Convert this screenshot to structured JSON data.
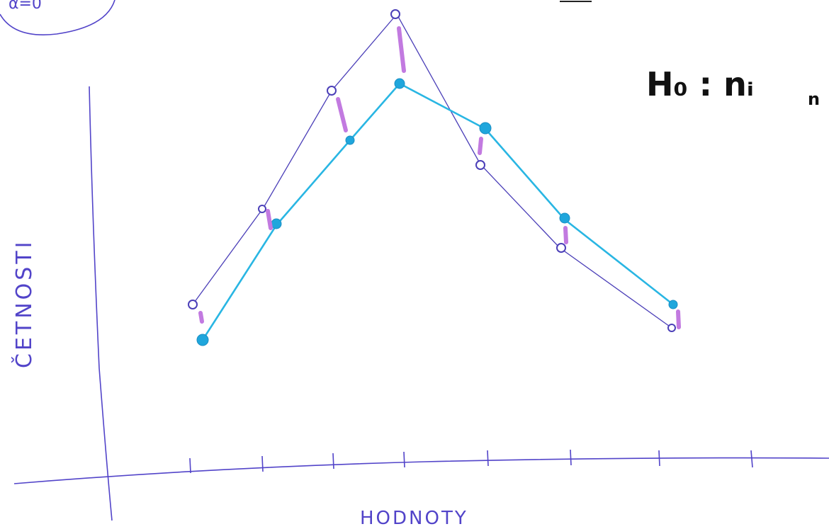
{
  "labels": {
    "y_axis": "ČETNOSTI",
    "x_axis": "HODNOTY",
    "hypothesis": "H₀ : nᵢ",
    "hypothesis_sub": "n",
    "corner_mark": "α=0"
  },
  "colors": {
    "axes": "#5244c9",
    "observed": "#4b3fb8",
    "expected": "#29b6e3",
    "difference": "#c27ae0",
    "hypothesis": "#111111"
  }
}
